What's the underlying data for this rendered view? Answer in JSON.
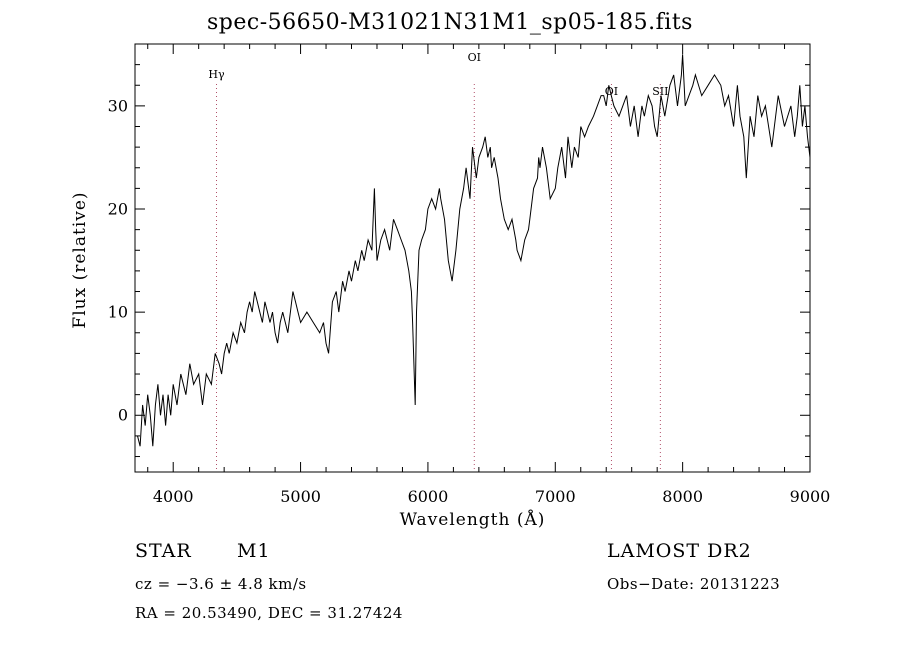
{
  "chart_data": {
    "type": "line",
    "title": "spec-56650-M31021N31M1_sp05-185.fits",
    "xlabel": "Wavelength (Å)",
    "ylabel": "Flux (relative)",
    "xlim": [
      3700,
      9000
    ],
    "ylim": [
      -5.5,
      36
    ],
    "xticks": [
      4000,
      5000,
      6000,
      7000,
      8000,
      9000
    ],
    "yticks": [
      0,
      10,
      20,
      30
    ],
    "grid": false,
    "spectral_lines": [
      {
        "label": "Hγ",
        "wavelength": 4340
      },
      {
        "label": "OI",
        "wavelength": 6364
      },
      {
        "label": "OI",
        "wavelength": 7441
      },
      {
        "label": "SII",
        "wavelength": 7825
      }
    ],
    "series": [
      {
        "x": [
          3720,
          3740,
          3760,
          3780,
          3800,
          3820,
          3840,
          3860,
          3880,
          3900,
          3920,
          3940,
          3960,
          3980,
          4000,
          4030,
          4060,
          4100,
          4130,
          4160,
          4200,
          4230,
          4260,
          4300,
          4330,
          4360,
          4380,
          4400,
          4420,
          4440,
          4470,
          4500,
          4530,
          4560,
          4580,
          4600,
          4620,
          4640,
          4660,
          4680,
          4700,
          4720,
          4740,
          4760,
          4780,
          4800,
          4820,
          4840,
          4860,
          4880,
          4900,
          4920,
          4940,
          4960,
          4980,
          5000,
          5050,
          5100,
          5150,
          5180,
          5200,
          5220,
          5250,
          5280,
          5300,
          5330,
          5350,
          5380,
          5400,
          5430,
          5450,
          5480,
          5500,
          5530,
          5560,
          5580,
          5590,
          5600,
          5630,
          5660,
          5700,
          5730,
          5760,
          5790,
          5820,
          5850,
          5870,
          5880,
          5890,
          5900,
          5910,
          5930,
          5950,
          5980,
          6000,
          6030,
          6060,
          6090,
          6100,
          6130,
          6160,
          6190,
          6220,
          6250,
          6280,
          6300,
          6330,
          6350,
          6380,
          6400,
          6430,
          6450,
          6470,
          6490,
          6500,
          6520,
          6550,
          6570,
          6600,
          6630,
          6660,
          6690,
          6700,
          6730,
          6760,
          6790,
          6800,
          6830,
          6860,
          6870,
          6880,
          6900,
          6930,
          6960,
          7000,
          7020,
          7050,
          7080,
          7100,
          7130,
          7150,
          7180,
          7200,
          7230,
          7260,
          7300,
          7330,
          7360,
          7380,
          7400,
          7420,
          7440,
          7460,
          7500,
          7530,
          7560,
          7590,
          7620,
          7650,
          7680,
          7700,
          7730,
          7760,
          7780,
          7800,
          7830,
          7860,
          7900,
          7930,
          7960,
          7990,
          8000,
          8020,
          8050,
          8080,
          8100,
          8150,
          8200,
          8250,
          8300,
          8330,
          8360,
          8400,
          8430,
          8450,
          8480,
          8500,
          8530,
          8560,
          8590,
          8620,
          8650,
          8700,
          8750,
          8800,
          8850,
          8880,
          8900,
          8920,
          8940,
          8960,
          8980,
          9000
        ],
        "y": [
          -2,
          -3,
          1,
          -1,
          2,
          0,
          -3,
          1,
          3,
          0,
          2,
          -1,
          2,
          0,
          3,
          1,
          4,
          2,
          5,
          3,
          4,
          1,
          4,
          3,
          6,
          5,
          4,
          6,
          7,
          6,
          8,
          7,
          9,
          8,
          10,
          11,
          10,
          12,
          11,
          10,
          9,
          11,
          10,
          9,
          10,
          8,
          7,
          9,
          10,
          9,
          8,
          10,
          12,
          11,
          10,
          9,
          10,
          9,
          8,
          9,
          7,
          6,
          11,
          12,
          10,
          13,
          12,
          14,
          13,
          15,
          14,
          16,
          15,
          17,
          16,
          22,
          18,
          15,
          17,
          18,
          16,
          19,
          18,
          17,
          16,
          14,
          12,
          9,
          5,
          1,
          10,
          16,
          17,
          18,
          20,
          21,
          20,
          22,
          21,
          19,
          15,
          13,
          16,
          20,
          22,
          24,
          21,
          26,
          23,
          25,
          26,
          27,
          25,
          26,
          24,
          25,
          23,
          21,
          19,
          18,
          19,
          17,
          16,
          15,
          17,
          18,
          19,
          22,
          23,
          25,
          24,
          26,
          24,
          21,
          22,
          24,
          26,
          23,
          27,
          24,
          26,
          25,
          28,
          27,
          28,
          29,
          30,
          31,
          31,
          30,
          32,
          31,
          30,
          29,
          30,
          31,
          28,
          30,
          27,
          30,
          29,
          31,
          30,
          28,
          27,
          31,
          29,
          32,
          33,
          30,
          33,
          35,
          30,
          31,
          32,
          33,
          31,
          32,
          33,
          32,
          30,
          31,
          28,
          32,
          29,
          27,
          23,
          29,
          27,
          31,
          29,
          30,
          26,
          31,
          28,
          30,
          27,
          29,
          32,
          28,
          30,
          27,
          25
        ]
      }
    ],
    "info": {
      "class_label": "STAR",
      "subclass_label": "M1",
      "survey": "LAMOST DR2",
      "cz": "cz = −3.6 ± 4.8 km/s",
      "obs_date": "Obs−Date: 20131223",
      "coords": "RA =  20.53490, DEC =  31.27424"
    }
  }
}
